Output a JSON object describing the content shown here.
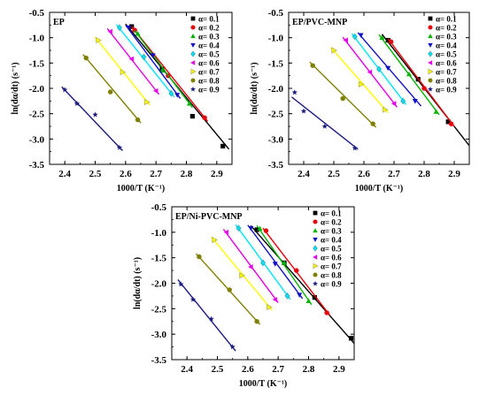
{
  "chart_data": [
    {
      "type": "scatter",
      "title": "EP",
      "xlabel": "1000/T (K⁻¹)",
      "ylabel": "ln(dα/dt) (s⁻¹)",
      "xlim": [
        2.35,
        2.95
      ],
      "ylim": [
        -3.5,
        -0.5
      ],
      "xticks": [
        "2.4",
        "2.5",
        "2.6",
        "2.7",
        "2.8",
        "2.9"
      ],
      "yticks": [
        "-0.5",
        "-1.0",
        "-1.5",
        "-2.0",
        "-2.5",
        "-3.0",
        "-3.5"
      ],
      "legend_position": "top-right",
      "grid": false,
      "series": [
        {
          "name": "α= 0.1",
          "color": "#000000",
          "marker": "square",
          "x": [
            2.62,
            2.72,
            2.82,
            2.92
          ],
          "y": [
            -0.78,
            -1.62,
            -2.55,
            -3.14
          ],
          "fit": [
            [
              2.6,
              -0.73
            ],
            [
              2.94,
              -3.2
            ]
          ]
        },
        {
          "name": "α= 0.2",
          "color": "#e8000b",
          "marker": "circle",
          "x": [
            2.63,
            2.74,
            2.86
          ],
          "y": [
            -0.85,
            -1.75,
            -2.58
          ],
          "fit": [
            [
              2.62,
              -0.78
            ],
            [
              2.87,
              -2.65
            ]
          ]
        },
        {
          "name": "α= 0.3",
          "color": "#00b300",
          "marker": "triangle-up",
          "x": [
            2.64,
            2.72,
            2.81
          ],
          "y": [
            -0.92,
            -1.65,
            -2.3
          ],
          "fit": [
            [
              2.63,
              -0.86
            ],
            [
              2.82,
              -2.38
            ]
          ]
        },
        {
          "name": "α= 0.4",
          "color": "#1010c8",
          "marker": "triangle-down",
          "x": [
            2.61,
            2.69,
            2.77
          ],
          "y": [
            -0.8,
            -1.35,
            -2.13
          ],
          "fit": [
            [
              2.6,
              -0.75
            ],
            [
              2.78,
              -2.2
            ]
          ]
        },
        {
          "name": "α= 0.5",
          "color": "#00e5ff",
          "marker": "diamond",
          "x": [
            2.58,
            2.66,
            2.75
          ],
          "y": [
            -0.8,
            -1.38,
            -2.1
          ],
          "fit": [
            [
              2.57,
              -0.74
            ],
            [
              2.76,
              -2.17
            ]
          ]
        },
        {
          "name": "α= 0.6",
          "color": "#e600e6",
          "marker": "triangle-left",
          "x": [
            2.55,
            2.62,
            2.7
          ],
          "y": [
            -0.88,
            -1.42,
            -2.05
          ],
          "fit": [
            [
              2.54,
              -0.82
            ],
            [
              2.71,
              -2.12
            ]
          ]
        },
        {
          "name": "α= 0.7",
          "color": "#ffff00",
          "marker": "triangle-right",
          "x": [
            2.51,
            2.59,
            2.67
          ],
          "y": [
            -1.05,
            -1.68,
            -2.27
          ],
          "fit": [
            [
              2.5,
              -0.99
            ],
            [
              2.68,
              -2.33
            ]
          ]
        },
        {
          "name": "α= 0.8",
          "color": "#808000",
          "marker": "circle",
          "x": [
            2.47,
            2.55,
            2.64
          ],
          "y": [
            -1.4,
            -2.07,
            -2.62
          ],
          "fit": [
            [
              2.46,
              -1.33
            ],
            [
              2.65,
              -2.68
            ]
          ]
        },
        {
          "name": "α= 0.9",
          "color": "#1a1a80",
          "marker": "star",
          "x": [
            2.4,
            2.44,
            2.5,
            2.58
          ],
          "y": [
            -2.03,
            -2.3,
            -2.52,
            -3.17
          ],
          "fit": [
            [
              2.39,
              -1.97
            ],
            [
              2.59,
              -3.23
            ]
          ]
        }
      ]
    },
    {
      "type": "scatter",
      "title": "EP/PVC-MNP",
      "xlabel": "1000/T (K⁻¹)",
      "ylabel": "ln(dα/dt) (s⁻¹)",
      "xlim": [
        2.35,
        2.95
      ],
      "ylim": [
        -3.5,
        -0.5
      ],
      "xticks": [
        "2.4",
        "2.5",
        "2.6",
        "2.7",
        "2.8",
        "2.9"
      ],
      "yticks": [
        "-0.5",
        "-1.0",
        "-1.5",
        "-2.0",
        "-2.5",
        "-3.0",
        "-3.5"
      ],
      "legend_position": "top-right",
      "grid": false,
      "series": [
        {
          "name": "α= 0.1",
          "color": "#000000",
          "marker": "square",
          "x": [
            2.68,
            2.78,
            2.88
          ],
          "y": [
            -1.05,
            -1.82,
            -2.66
          ],
          "fit": [
            [
              2.66,
              -0.93
            ],
            [
              2.95,
              -3.13
            ]
          ]
        },
        {
          "name": "α= 0.2",
          "color": "#e8000b",
          "marker": "circle",
          "x": [
            2.69,
            2.8,
            2.89
          ],
          "y": [
            -1.08,
            -2.0,
            -2.7
          ],
          "fit": [
            [
              2.68,
              -1.02
            ],
            [
              2.9,
              -2.75
            ]
          ]
        },
        {
          "name": "α= 0.3",
          "color": "#00b300",
          "marker": "triangle-up",
          "x": [
            2.66,
            2.75,
            2.84
          ],
          "y": [
            -1.0,
            -1.72,
            -2.46
          ],
          "fit": [
            [
              2.65,
              -0.94
            ],
            [
              2.85,
              -2.52
            ]
          ]
        },
        {
          "name": "α= 0.4",
          "color": "#1010c8",
          "marker": "triangle-down",
          "x": [
            2.59,
            2.68,
            2.77
          ],
          "y": [
            -0.95,
            -1.6,
            -2.25
          ],
          "fit": [
            [
              2.58,
              -0.9
            ],
            [
              2.79,
              -2.35
            ]
          ]
        },
        {
          "name": "α= 0.5",
          "color": "#00e5ff",
          "marker": "diamond",
          "x": [
            2.57,
            2.65,
            2.73
          ],
          "y": [
            -0.98,
            -1.62,
            -2.25
          ],
          "fit": [
            [
              2.56,
              -0.92
            ],
            [
              2.74,
              -2.32
            ]
          ]
        },
        {
          "name": "α= 0.6",
          "color": "#e600e6",
          "marker": "triangle-left",
          "x": [
            2.54,
            2.62,
            2.7
          ],
          "y": [
            -1.05,
            -1.68,
            -2.3
          ],
          "fit": [
            [
              2.53,
              -0.99
            ],
            [
              2.71,
              -2.37
            ]
          ]
        },
        {
          "name": "α= 0.7",
          "color": "#ffff00",
          "marker": "triangle-right",
          "x": [
            2.5,
            2.59,
            2.67
          ],
          "y": [
            -1.25,
            -1.92,
            -2.42
          ],
          "fit": [
            [
              2.49,
              -1.19
            ],
            [
              2.68,
              -2.48
            ]
          ]
        },
        {
          "name": "α= 0.8",
          "color": "#808000",
          "marker": "circle",
          "x": [
            2.43,
            2.53,
            2.63
          ],
          "y": [
            -1.55,
            -2.2,
            -2.7
          ],
          "fit": [
            [
              2.42,
              -1.48
            ],
            [
              2.64,
              -2.77
            ]
          ]
        },
        {
          "name": "α= 0.9",
          "color": "#1a1a80",
          "marker": "star",
          "x": [
            2.37,
            2.4,
            2.47,
            2.57
          ],
          "y": [
            -2.08,
            -2.45,
            -2.75,
            -3.18
          ],
          "fit": [
            [
              2.36,
              -2.17
            ],
            [
              2.58,
              -3.2
            ]
          ]
        }
      ]
    },
    {
      "type": "scatter",
      "title": "EP/Ni-PVC-MNP",
      "xlabel": "1000/T (K⁻¹)",
      "ylabel": "ln(dα/dt) (s⁻¹)",
      "xlim": [
        2.35,
        2.95
      ],
      "ylim": [
        -3.5,
        -0.5
      ],
      "xticks": [
        "2.4",
        "2.5",
        "2.6",
        "2.7",
        "2.8",
        "2.9"
      ],
      "yticks": [
        "-0.5",
        "-1.0",
        "-1.5",
        "-2.0",
        "-2.5",
        "-3.0",
        "-3.5"
      ],
      "legend_position": "top-right",
      "grid": false,
      "series": [
        {
          "name": "α= 0.1",
          "color": "#000000",
          "marker": "square",
          "x": [
            2.63,
            2.72,
            2.82,
            2.94
          ],
          "y": [
            -0.95,
            -1.6,
            -2.28,
            -3.08
          ],
          "fit": [
            [
              2.61,
              -0.87
            ],
            [
              2.95,
              -3.18
            ]
          ]
        },
        {
          "name": "α= 0.2",
          "color": "#e8000b",
          "marker": "circle",
          "x": [
            2.66,
            2.76,
            2.86
          ],
          "y": [
            -0.97,
            -1.75,
            -2.58
          ],
          "fit": [
            [
              2.65,
              -0.92
            ],
            [
              2.87,
              -2.63
            ]
          ]
        },
        {
          "name": "α= 0.3",
          "color": "#00b300",
          "marker": "triangle-up",
          "x": [
            2.64,
            2.72,
            2.8
          ],
          "y": [
            -0.93,
            -1.6,
            -2.35
          ],
          "fit": [
            [
              2.63,
              -0.87
            ],
            [
              2.81,
              -2.42
            ]
          ]
        },
        {
          "name": "α= 0.4",
          "color": "#1010c8",
          "marker": "triangle-down",
          "x": [
            2.61,
            2.69,
            2.77
          ],
          "y": [
            -0.92,
            -1.62,
            -2.23
          ],
          "fit": [
            [
              2.6,
              -0.86
            ],
            [
              2.78,
              -2.3
            ]
          ]
        },
        {
          "name": "α= 0.5",
          "color": "#00e5ff",
          "marker": "diamond",
          "x": [
            2.57,
            2.65,
            2.73
          ],
          "y": [
            -0.92,
            -1.6,
            -2.25
          ],
          "fit": [
            [
              2.56,
              -0.85
            ],
            [
              2.74,
              -2.32
            ]
          ]
        },
        {
          "name": "α= 0.6",
          "color": "#e600e6",
          "marker": "triangle-left",
          "x": [
            2.53,
            2.61,
            2.69
          ],
          "y": [
            -1.0,
            -1.68,
            -2.32
          ],
          "fit": [
            [
              2.52,
              -0.94
            ],
            [
              2.7,
              -2.38
            ]
          ]
        },
        {
          "name": "α= 0.7",
          "color": "#ffff00",
          "marker": "triangle-right",
          "x": [
            2.49,
            2.58,
            2.67
          ],
          "y": [
            -1.15,
            -1.85,
            -2.47
          ],
          "fit": [
            [
              2.48,
              -1.09
            ],
            [
              2.68,
              -2.53
            ]
          ]
        },
        {
          "name": "α= 0.8",
          "color": "#808000",
          "marker": "circle",
          "x": [
            2.44,
            2.54,
            2.63
          ],
          "y": [
            -1.48,
            -2.13,
            -2.75
          ],
          "fit": [
            [
              2.43,
              -1.42
            ],
            [
              2.64,
              -2.81
            ]
          ]
        },
        {
          "name": "α= 0.9",
          "color": "#1a1a80",
          "marker": "star",
          "x": [
            2.38,
            2.42,
            2.48,
            2.55
          ],
          "y": [
            -2.02,
            -2.32,
            -2.7,
            -3.25
          ],
          "fit": [
            [
              2.37,
              -1.93
            ],
            [
              2.56,
              -3.33
            ]
          ]
        }
      ]
    }
  ]
}
